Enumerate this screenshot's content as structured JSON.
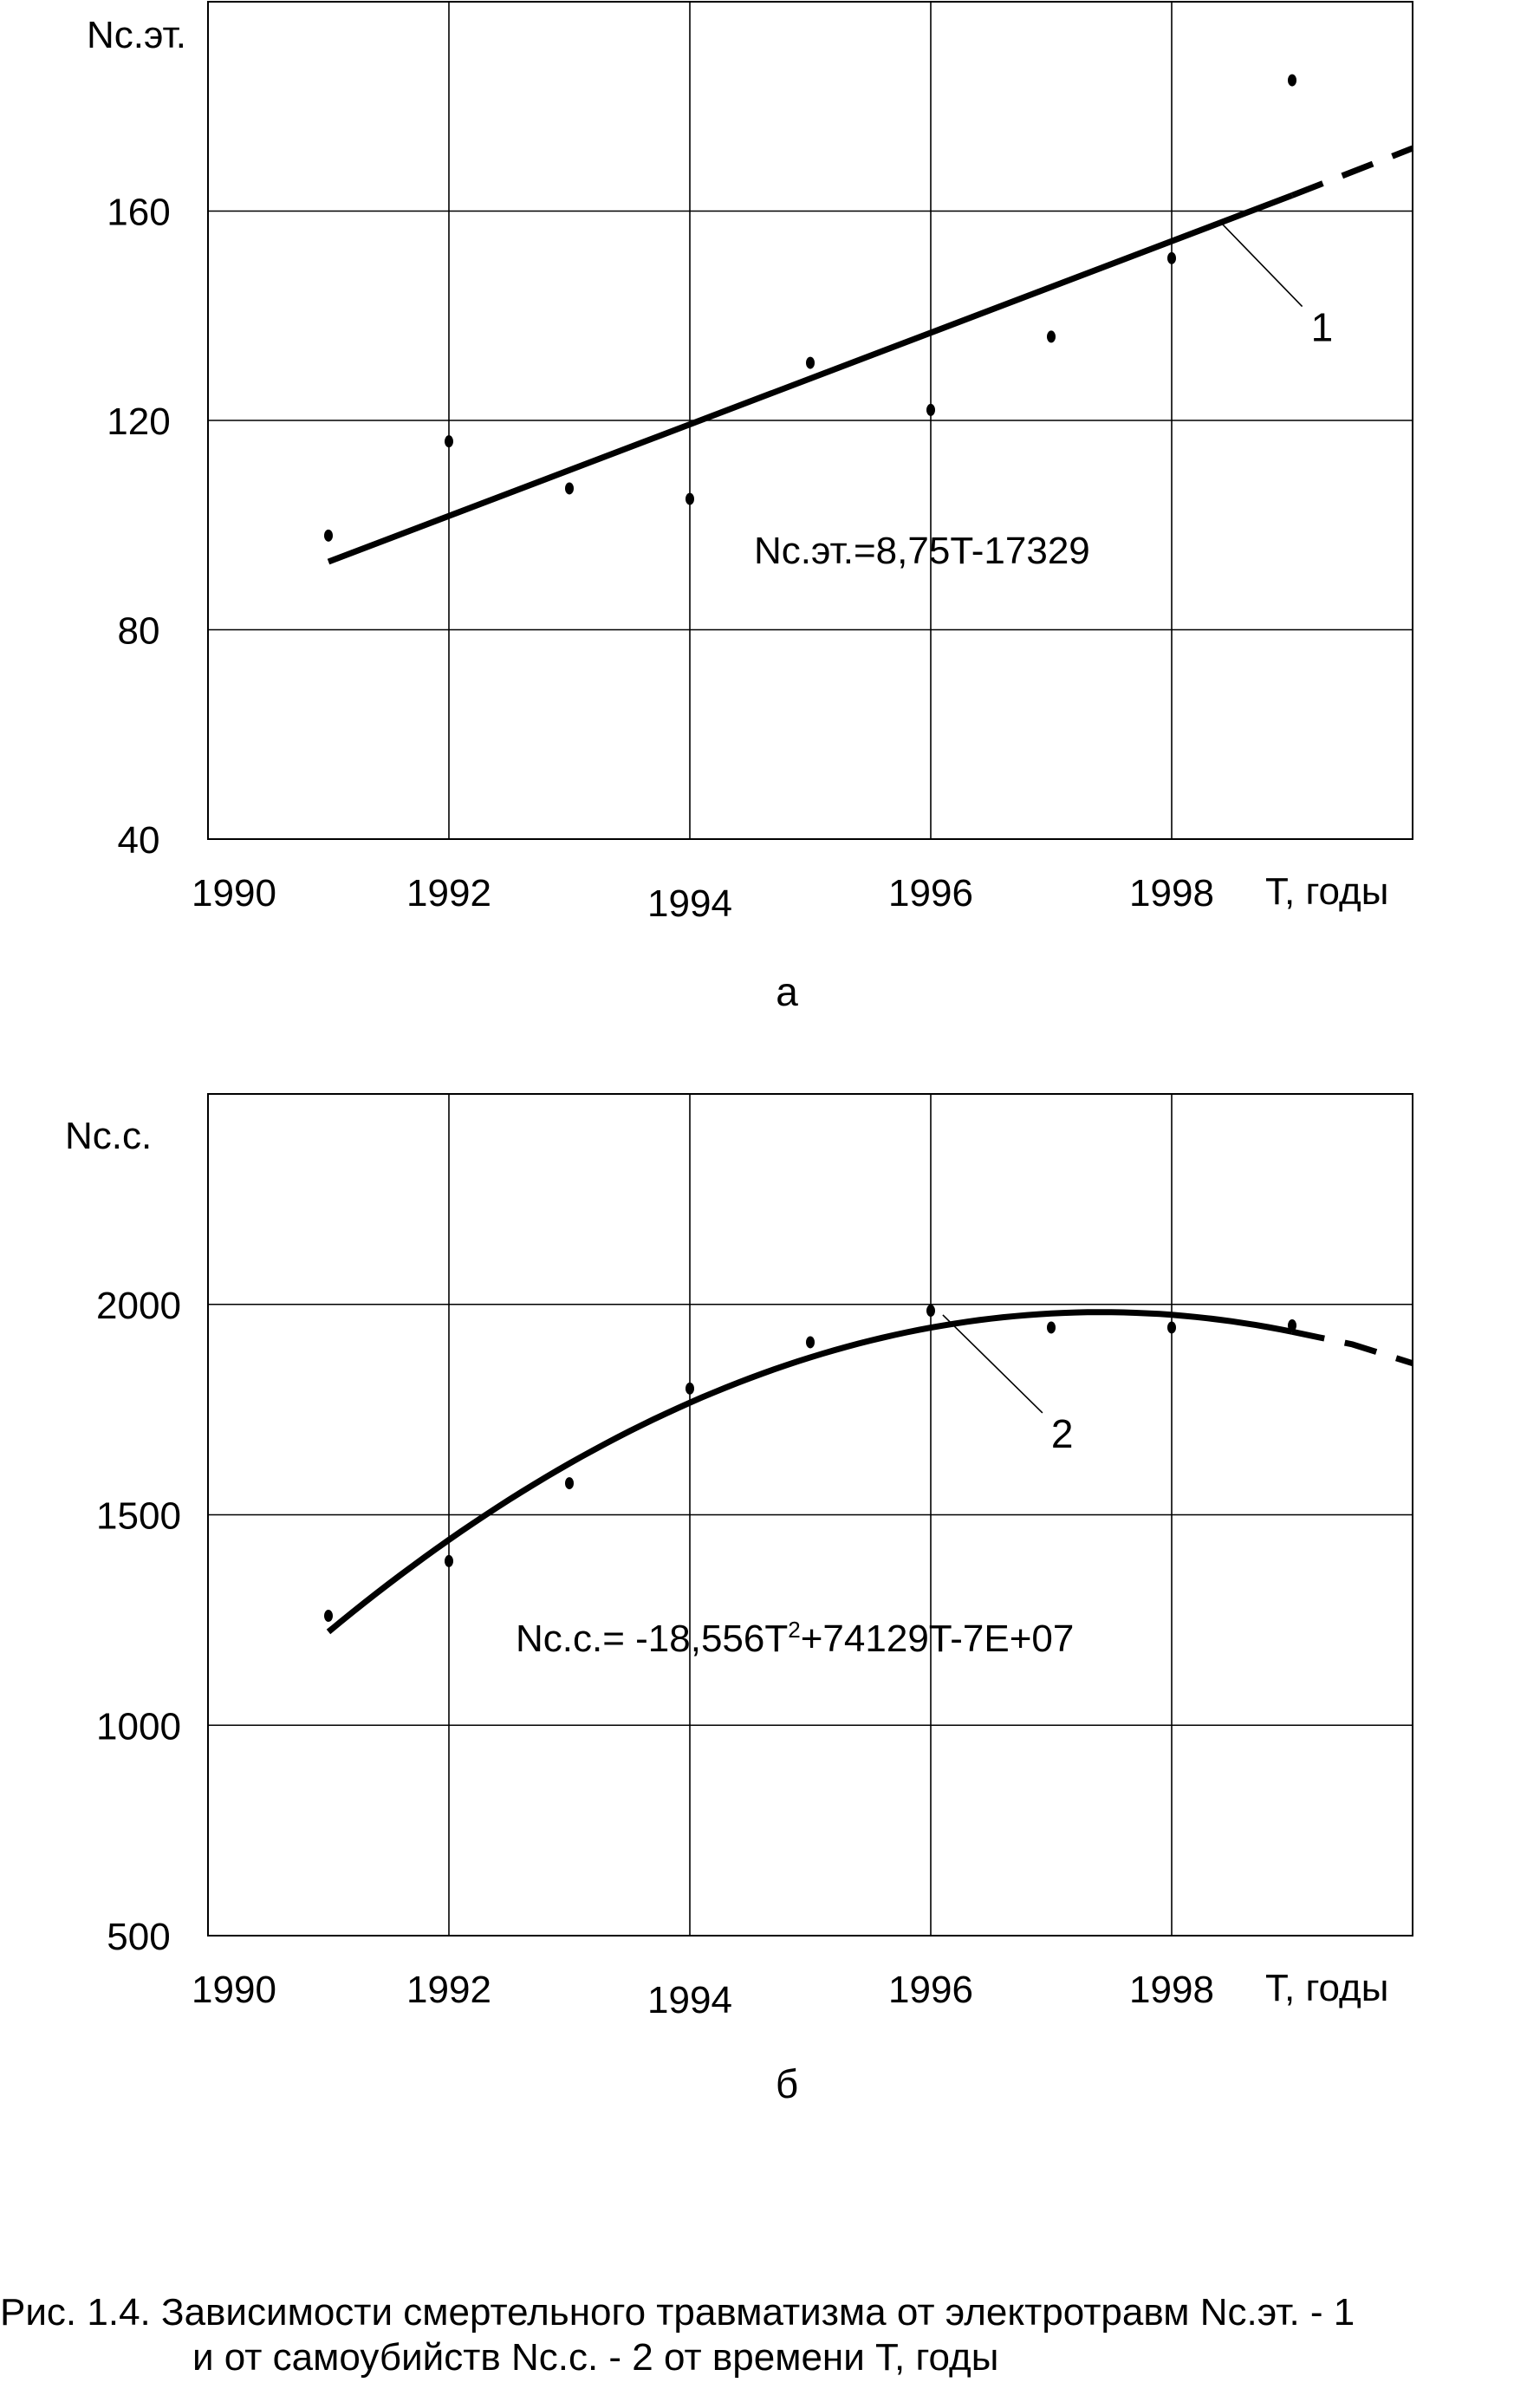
{
  "chart_data": [
    {
      "type": "scatter",
      "panel_label": "а",
      "ylabel": "Nс.эт.",
      "xlabel": "T, годы",
      "xlim": [
        1990,
        2000
      ],
      "ylim": [
        40,
        200
      ],
      "xticks": [
        1990,
        1992,
        1994,
        1996,
        1998
      ],
      "xtick_labels": [
        "1990",
        "1992",
        "1994",
        "1996",
        "1998"
      ],
      "yticks": [
        40,
        80,
        120,
        160
      ],
      "ytick_labels": [
        "40",
        "80",
        "120",
        "160"
      ],
      "grid": true,
      "series": [
        {
          "x": [
            1991,
            1992,
            1993,
            1994,
            1995,
            1996,
            1997,
            1998,
            1999
          ],
          "values": [
            98,
            116,
            107,
            105,
            131,
            122,
            136,
            151,
            185
          ]
        }
      ],
      "trend": {
        "kind": "linear",
        "x_solid": [
          1991,
          1999
        ],
        "x_dashed": [
          1999,
          2000
        ],
        "y_solid": [
          93,
          163
        ],
        "y_dashed": [
          163,
          172
        ],
        "equation": "Nс.эт.=8,75T-17329",
        "label": "1",
        "label_point": [
          1998.4,
          158
        ]
      }
    },
    {
      "type": "scatter",
      "panel_label": "б",
      "ylabel": "Nс.с.",
      "xlabel": "T, годы",
      "xlim": [
        1990,
        2000
      ],
      "ylim": [
        500,
        2500
      ],
      "xticks": [
        1990,
        1992,
        1994,
        1996,
        1998
      ],
      "xtick_labels": [
        "1990",
        "1992",
        "1994",
        "1996",
        "1998"
      ],
      "yticks": [
        500,
        1000,
        1500,
        2000
      ],
      "ytick_labels": [
        "500",
        "1000",
        "1500",
        "2000"
      ],
      "grid": true,
      "series": [
        {
          "x": [
            1991,
            1992,
            1993,
            1994,
            1995,
            1996,
            1997,
            1998,
            1999
          ],
          "values": [
            1260,
            1390,
            1575,
            1800,
            1910,
            1985,
            1945,
            1945,
            1950
          ]
        }
      ],
      "trend": {
        "kind": "quadratic",
        "x_solid": [
          1991,
          1992,
          1993,
          1994,
          1995,
          1996,
          1997,
          1998,
          1999
        ],
        "y_solid": [
          1222,
          1437,
          1617,
          1761,
          1874,
          1945,
          1979,
          1975,
          1935
        ],
        "x_dashed": [
          1999,
          1999.5,
          2000
        ],
        "y_dashed": [
          1935,
          1905,
          1860
        ],
        "equation_main": "Nс.с.= -18,556T",
        "equation_sup": "2",
        "equation_rest": "+74129T-7E+07",
        "label": "2",
        "label_point": [
          1996.1,
          1975
        ]
      }
    }
  ],
  "caption": {
    "line1": "Рис. 1.4. Зависимости смертельного травматизма  от электротравм Nс.эт. - 1",
    "line2": "и от самоубийств Nс.с. - 2 от времени T, годы"
  }
}
